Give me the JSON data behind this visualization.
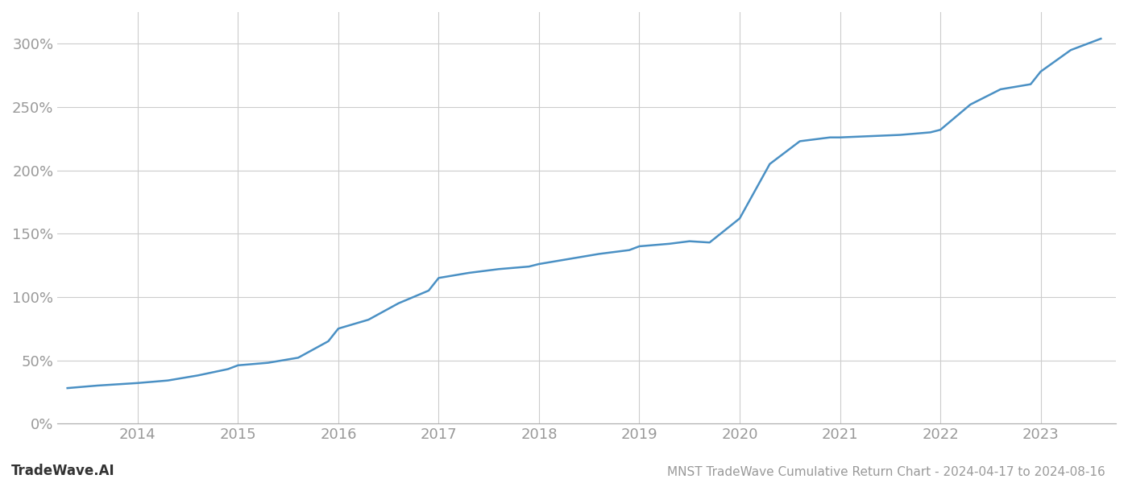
{
  "title": "MNST TradeWave Cumulative Return Chart - 2024-04-17 to 2024-08-16",
  "watermark": "TradeWave.AI",
  "line_color": "#4a90c4",
  "background_color": "#ffffff",
  "grid_color": "#cccccc",
  "x_values": [
    2013.3,
    2013.6,
    2014.0,
    2014.3,
    2014.6,
    2014.9,
    2015.0,
    2015.3,
    2015.6,
    2015.9,
    2016.0,
    2016.3,
    2016.6,
    2016.9,
    2017.0,
    2017.3,
    2017.6,
    2017.9,
    2018.0,
    2018.3,
    2018.6,
    2018.9,
    2019.0,
    2019.3,
    2019.5,
    2019.7,
    2020.0,
    2020.3,
    2020.6,
    2020.9,
    2021.0,
    2021.3,
    2021.6,
    2021.9,
    2022.0,
    2022.3,
    2022.6,
    2022.9,
    2023.0,
    2023.3,
    2023.6
  ],
  "y_values": [
    28,
    30,
    32,
    34,
    38,
    43,
    46,
    48,
    52,
    65,
    75,
    82,
    95,
    105,
    115,
    119,
    122,
    124,
    126,
    130,
    134,
    137,
    140,
    142,
    144,
    143,
    162,
    205,
    223,
    226,
    226,
    227,
    228,
    230,
    232,
    252,
    264,
    268,
    278,
    295,
    304
  ],
  "xlim": [
    2013.2,
    2023.75
  ],
  "ylim": [
    0,
    325
  ],
  "yticks": [
    0,
    50,
    100,
    150,
    200,
    250,
    300
  ],
  "xticks": [
    2014,
    2015,
    2016,
    2017,
    2018,
    2019,
    2020,
    2021,
    2022,
    2023
  ],
  "tick_color": "#999999",
  "line_width": 1.8,
  "title_fontsize": 11,
  "tick_fontsize": 13,
  "watermark_fontsize": 12
}
